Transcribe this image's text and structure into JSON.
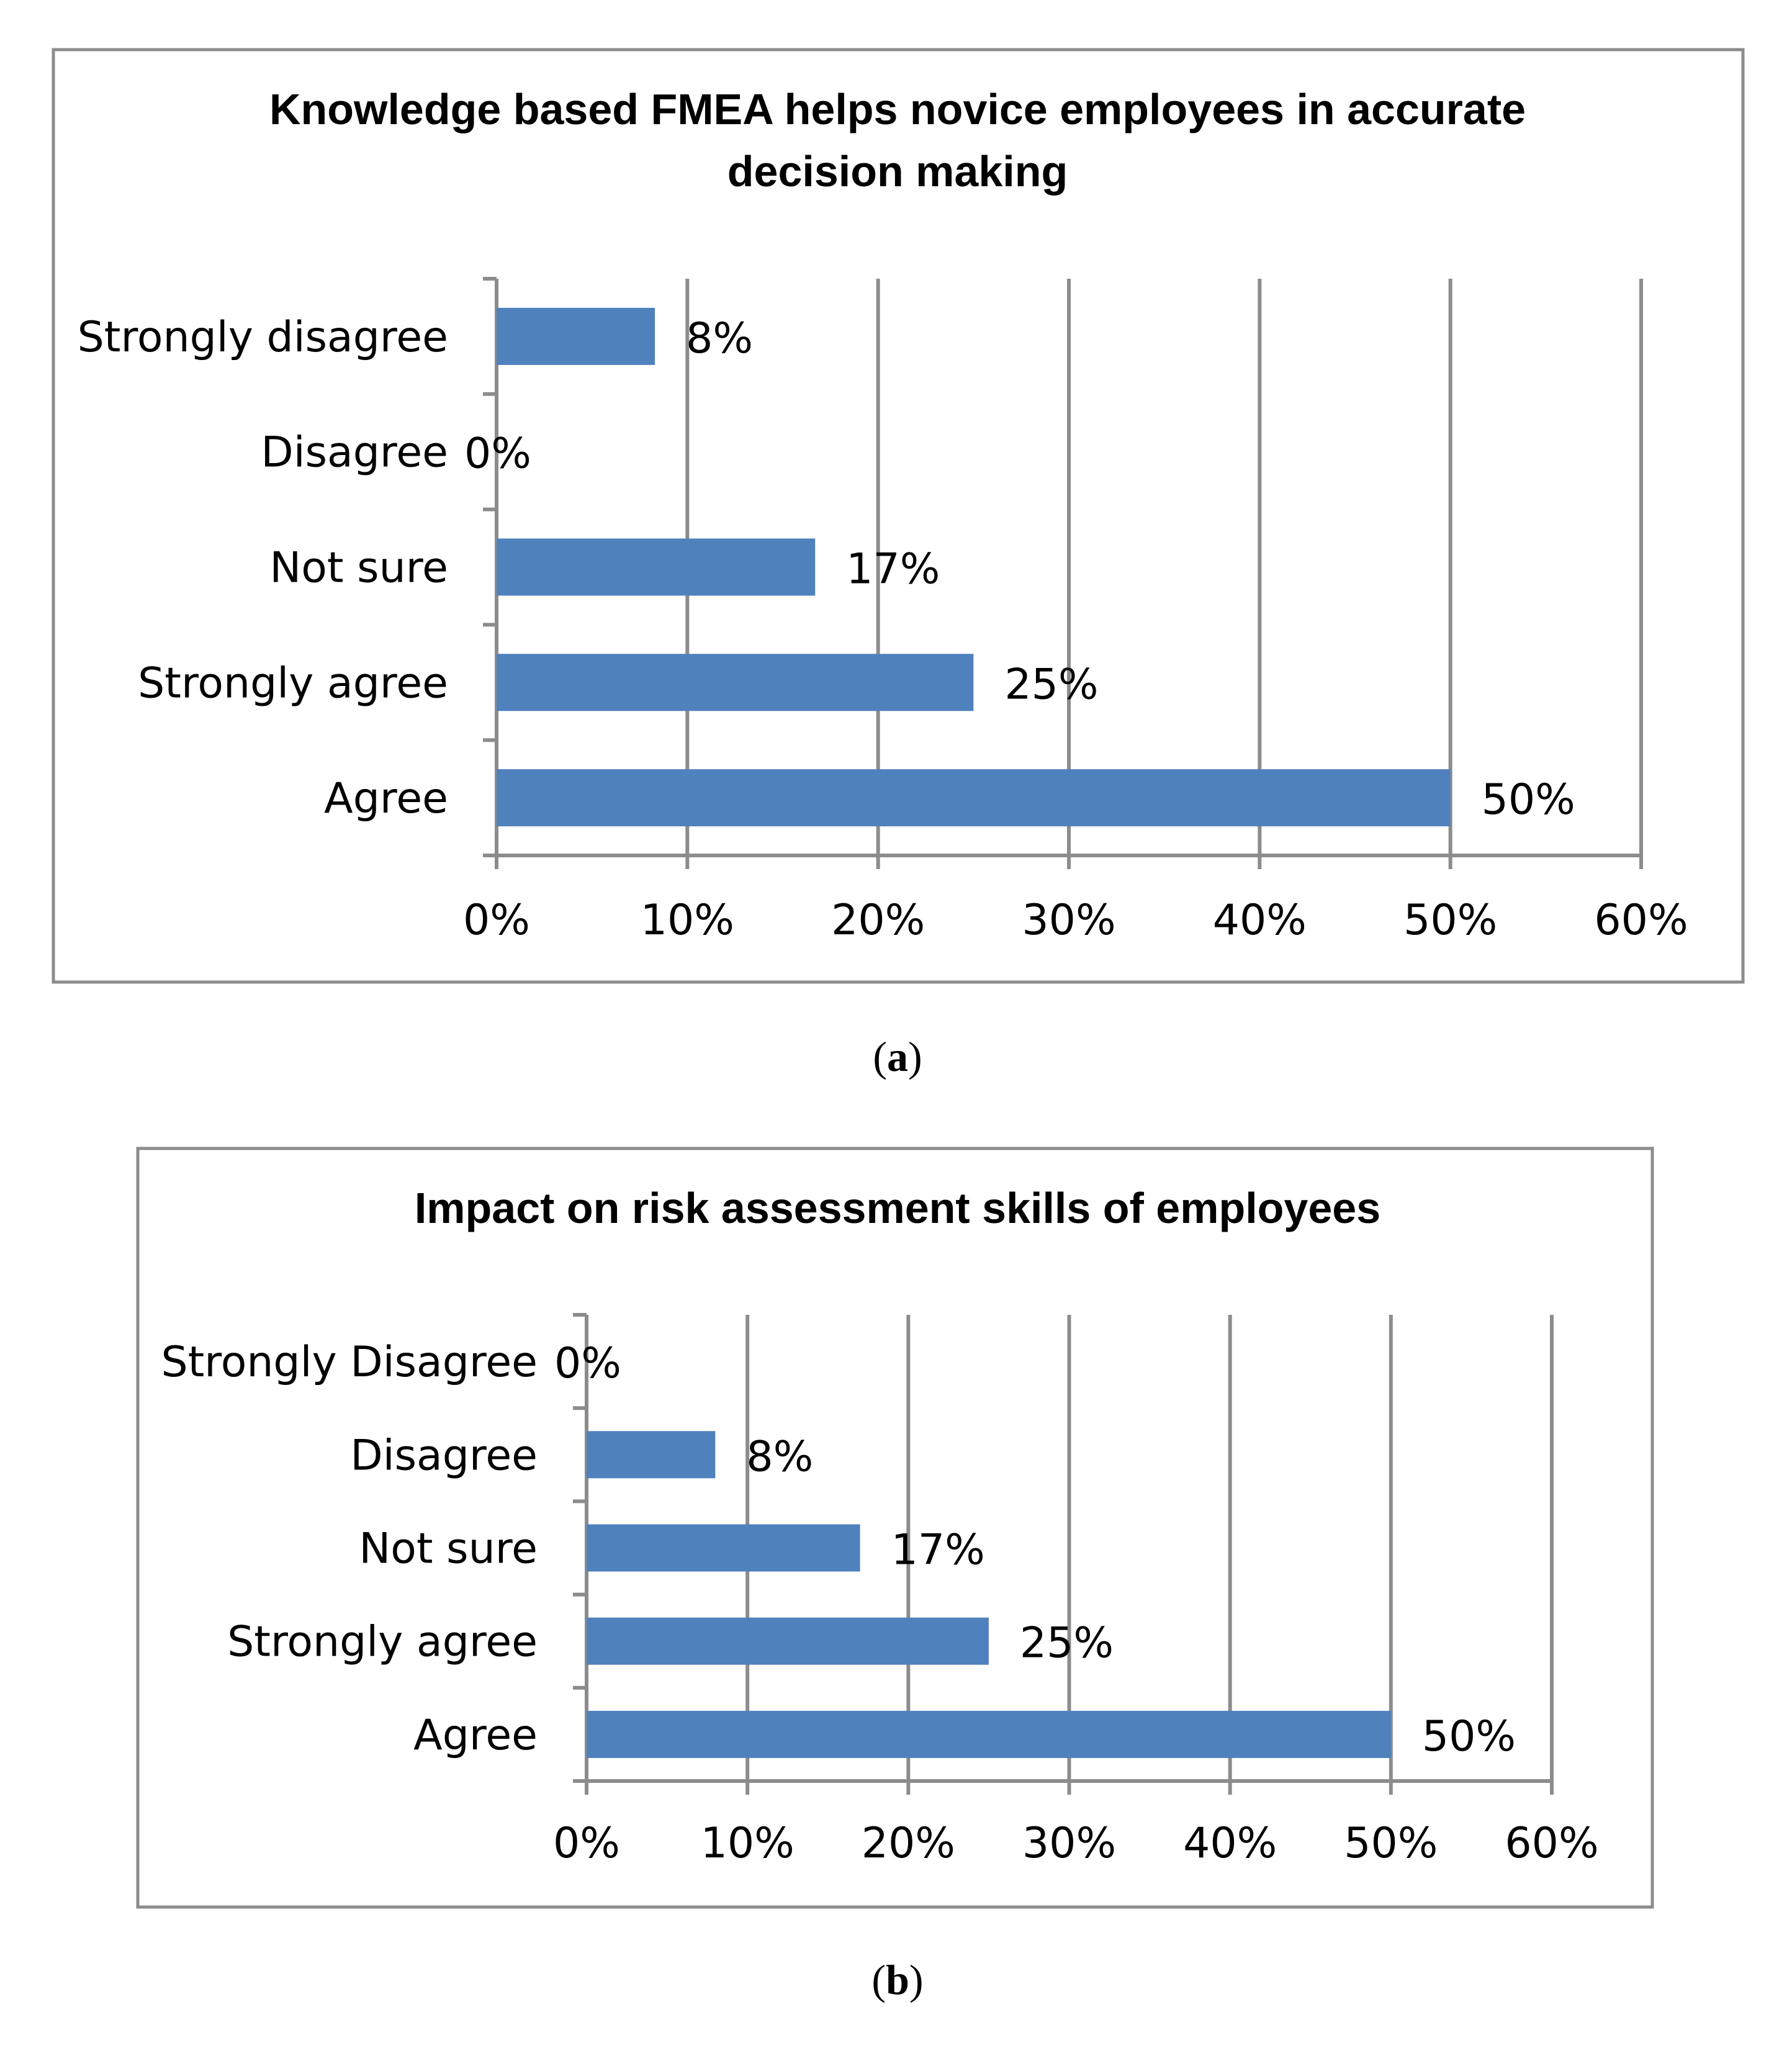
{
  "chart_data": [
    {
      "type": "bar",
      "orientation": "horizontal",
      "title": "Knowledge based FMEA helps novice employees in accurate decision making",
      "title_lines": [
        "Knowledge based FMEA helps novice employees in accurate",
        "decision making"
      ],
      "categories": [
        "Strongly disagree",
        "Disagree",
        "Not sure",
        "Strongly agree",
        "Agree"
      ],
      "values": [
        8.3,
        0,
        16.7,
        25,
        50
      ],
      "data_labels": [
        "8%",
        "0%",
        "17%",
        "25%",
        "50%"
      ],
      "xlim": [
        0,
        60
      ],
      "ticks": [
        0,
        10,
        20,
        30,
        40,
        50,
        60
      ],
      "tick_labels": [
        "0%",
        "10%",
        "20%",
        "30%",
        "40%",
        "50%",
        "60%"
      ],
      "grid": true,
      "bar_color": "#4f81bd",
      "caption": {
        "open": "(",
        "letter": "a",
        "close": ")"
      }
    },
    {
      "type": "bar",
      "orientation": "horizontal",
      "title": "Impact on risk assessment skills of employees",
      "title_lines": [
        "Impact on risk assessment skills of employees"
      ],
      "categories": [
        "Strongly Disagree",
        "Disagree",
        "Not sure",
        "Strongly agree",
        "Agree"
      ],
      "values": [
        0,
        8,
        17,
        25,
        50
      ],
      "data_labels": [
        "0%",
        "8%",
        "17%",
        "25%",
        "50%"
      ],
      "xlim": [
        0,
        60
      ],
      "ticks": [
        0,
        10,
        20,
        30,
        40,
        50,
        60
      ],
      "tick_labels": [
        "0%",
        "10%",
        "20%",
        "30%",
        "40%",
        "50%",
        "60%"
      ],
      "grid": true,
      "bar_color": "#4f81bd",
      "caption": {
        "open": "(",
        "letter": "b",
        "close": ")"
      }
    }
  ]
}
